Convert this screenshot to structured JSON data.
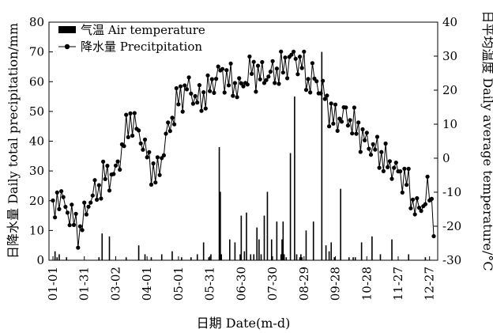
{
  "chart_data": {
    "type": "bar+line",
    "xlabel": "日期 Date(m-d)",
    "ylabel_left": "日降水量 Daily total precipitation/mm",
    "ylabel_right": "日平均温度 Daily average temperature/°C",
    "ylim_left": [
      0,
      80
    ],
    "ylim_right": [
      -30,
      40
    ],
    "yticks_left": [
      "0",
      "10",
      "20",
      "30",
      "40",
      "50",
      "60",
      "70",
      "80"
    ],
    "yticks_right": [
      "-30",
      "-20",
      "-10",
      "0",
      "10",
      "20",
      "30",
      "40"
    ],
    "xticks": [
      "01-01",
      "01-31",
      "03-02",
      "04-01",
      "05-01",
      "05-31",
      "06-30",
      "07-30",
      "08-29",
      "09-28",
      "10-28",
      "11-27",
      "12-27"
    ],
    "xlim_days": [
      1,
      365
    ],
    "grid": false,
    "legend_position": "top-left",
    "series": [
      {
        "name": "气温 Air temperature",
        "kind": "bar",
        "axis": "left",
        "days": [
          3,
          5,
          7,
          14,
          45,
          48,
          55,
          71,
          83,
          89,
          95,
          105,
          115,
          124,
          133,
          139,
          145,
          150,
          152,
          160,
          161,
          162,
          170,
          175,
          180,
          181,
          184,
          186,
          190,
          193,
          196,
          198,
          200,
          203,
          206,
          210,
          215,
          219,
          220,
          221,
          222,
          224,
          228,
          232,
          234,
          237,
          238,
          239,
          243,
          250,
          258,
          262,
          265,
          267,
          270,
          276,
          284,
          288,
          290,
          296,
          306,
          314,
          325,
          341,
          357
        ],
        "values": [
          3,
          1,
          2,
          1,
          1,
          9,
          8,
          1,
          5,
          2,
          1,
          2,
          3,
          1,
          1,
          2,
          6,
          1,
          2,
          38,
          23,
          2,
          7,
          6,
          2,
          15,
          3,
          16,
          2,
          2,
          11,
          7,
          2,
          15,
          23,
          7,
          13,
          2,
          7,
          13,
          2,
          1,
          36,
          55,
          2,
          1,
          2,
          1,
          10,
          13,
          70,
          5,
          3,
          6,
          1,
          24,
          1,
          1,
          1,
          6,
          8,
          2,
          7,
          2,
          1
        ]
      },
      {
        "name": "降水量 Precitpitation",
        "kind": "line",
        "axis": "right",
        "anchor_days": [
          1,
          5,
          12,
          20,
          27,
          35,
          45,
          50,
          60,
          70,
          75,
          80,
          85,
          90,
          100,
          110,
          120,
          130,
          140,
          150,
          160,
          170,
          180,
          190,
          200,
          210,
          220,
          230,
          240,
          245,
          250,
          260,
          270,
          280,
          290,
          300,
          310,
          320,
          330,
          340,
          345,
          350,
          355,
          360,
          365
        ],
        "anchor_values": [
          -18,
          -11,
          -14,
          -19,
          -23,
          -14,
          -10,
          -6,
          -6,
          6,
          12,
          9,
          7,
          2,
          -5,
          8,
          18,
          22,
          17,
          20,
          25,
          22,
          19,
          25,
          23,
          24,
          26,
          30,
          28,
          23,
          25,
          20,
          12,
          14,
          10,
          5,
          2,
          -2,
          -5,
          -8,
          -14,
          -17,
          -14,
          -10,
          -18
        ]
      }
    ]
  },
  "legend": [
    {
      "label": "气温 Air temperature",
      "symbol": "bar"
    },
    {
      "label": "降水量 Precitpitation",
      "symbol": "line-dot"
    }
  ],
  "colors": {
    "bars": "#000000",
    "line": "#000000",
    "markers": "#000000",
    "background": "#ffffff"
  }
}
